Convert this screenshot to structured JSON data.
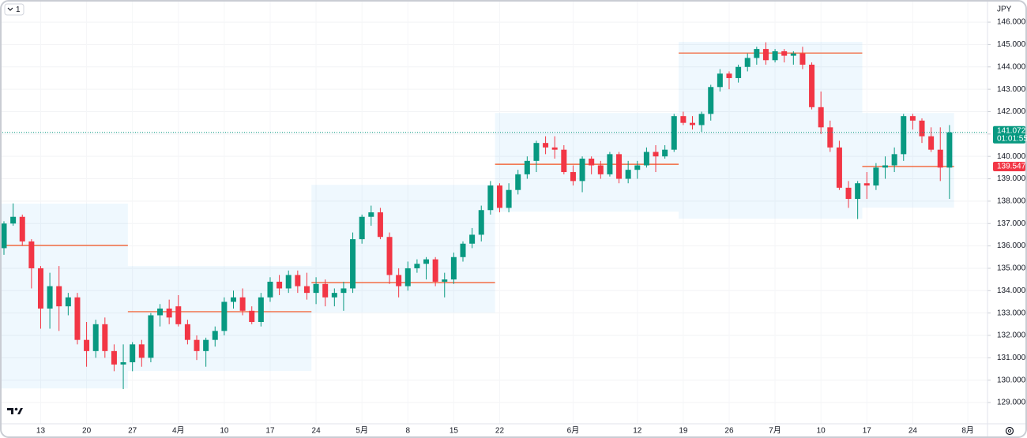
{
  "chart_data": {
    "type": "candlestick",
    "currency": "JPY",
    "interval": "1",
    "countdown": "01:01:55",
    "categories": [
      null,
      null,
      null,
      null,
      "13",
      null,
      null,
      null,
      null,
      "20",
      null,
      null,
      null,
      null,
      "27",
      null,
      null,
      null,
      null,
      "4月",
      null,
      null,
      null,
      null,
      "10",
      null,
      null,
      null,
      null,
      "17",
      null,
      null,
      null,
      null,
      "24",
      null,
      null,
      null,
      null,
      "5月",
      null,
      null,
      null,
      null,
      "8",
      null,
      null,
      null,
      null,
      "15",
      null,
      null,
      null,
      null,
      "22",
      null,
      null,
      null,
      null,
      null,
      null,
      null,
      "6月",
      null,
      null,
      null,
      null,
      null,
      null,
      "12",
      null,
      null,
      null,
      null,
      "19",
      null,
      null,
      null,
      null,
      "26",
      null,
      null,
      null,
      null,
      "7月",
      null,
      null,
      null,
      null,
      "10",
      null,
      null,
      null,
      null,
      "17",
      null,
      null,
      null,
      null,
      "24",
      null,
      null,
      null,
      null,
      null,
      "8月"
    ],
    "open": [
      135.9,
      137.0,
      137.3,
      136.2,
      135.0,
      133.2,
      134.2,
      133.3,
      133.7,
      131.8,
      131.3,
      132.5,
      131.3,
      130.7,
      130.8,
      131.6,
      131.0,
      132.9,
      133.2,
      133.3,
      132.5,
      131.8,
      131.3,
      131.8,
      132.2,
      133.5,
      133.7,
      133.1,
      132.6,
      133.7,
      134.4,
      134.1,
      134.7,
      134.2,
      133.9,
      134.3,
      133.7,
      133.9,
      134.1,
      136.3,
      137.3,
      137.5,
      136.4,
      134.7,
      134.2,
      135.0,
      135.2,
      135.4,
      134.4,
      134.5,
      135.5,
      136.1,
      136.5,
      137.6,
      138.7,
      137.7,
      138.5,
      139.2,
      139.8,
      140.6,
      140.4,
      140.3,
      139.3,
      138.9,
      139.9,
      139.6,
      139.2,
      140.1,
      139.0,
      139.4,
      139.6,
      140.2,
      140.0,
      140.3,
      141.8,
      141.5,
      141.4,
      141.9,
      143.1,
      143.7,
      143.5,
      144.0,
      144.4,
      144.8,
      144.3,
      144.7,
      144.5,
      144.6,
      144.1,
      142.2,
      141.3,
      140.4,
      138.6,
      138.1,
      138.8,
      138.7,
      139.5,
      139.6,
      140.1,
      141.8,
      141.6,
      140.9,
      140.3,
      139.5,
      null,
      null
    ],
    "high": [
      137.1,
      137.9,
      137.4,
      136.3,
      135.1,
      134.8,
      135.1,
      133.9,
      133.9,
      132.6,
      132.7,
      132.8,
      131.6,
      131.6,
      131.7,
      131.8,
      133.0,
      133.4,
      133.6,
      133.8,
      132.7,
      132.0,
      131.9,
      132.4,
      133.7,
      134.0,
      134.1,
      133.3,
      133.9,
      134.6,
      134.7,
      134.9,
      134.9,
      134.8,
      134.6,
      134.5,
      134.1,
      134.4,
      136.6,
      137.4,
      137.8,
      137.7,
      136.6,
      135.0,
      135.3,
      135.4,
      135.5,
      135.5,
      134.8,
      135.7,
      136.2,
      136.8,
      137.8,
      138.9,
      138.8,
      138.8,
      139.4,
      140.0,
      140.7,
      140.9,
      140.9,
      140.5,
      139.6,
      140.0,
      140.0,
      139.8,
      140.2,
      140.2,
      139.8,
      139.8,
      140.4,
      140.5,
      140.5,
      141.9,
      142.0,
      141.8,
      142.0,
      143.2,
      143.9,
      143.8,
      144.1,
      144.6,
      144.9,
      145.1,
      144.8,
      144.8,
      144.7,
      144.9,
      144.2,
      142.9,
      141.6,
      140.7,
      138.9,
      138.9,
      139.3,
      139.7,
      140.0,
      140.4,
      141.9,
      141.9,
      141.7,
      141.3,
      141.3,
      141.4,
      null,
      null
    ],
    "low": [
      135.6,
      136.9,
      136.0,
      134.1,
      132.3,
      132.3,
      132.2,
      132.9,
      131.6,
      130.6,
      131.0,
      131.0,
      130.4,
      129.6,
      130.4,
      130.6,
      130.8,
      132.4,
      132.5,
      132.4,
      131.6,
      130.9,
      130.6,
      131.5,
      132.0,
      133.2,
      132.9,
      132.5,
      132.4,
      133.5,
      133.8,
      133.9,
      133.9,
      133.6,
      133.4,
      133.3,
      133.3,
      133.1,
      133.9,
      136.1,
      136.9,
      136.3,
      134.3,
      133.7,
      134.0,
      134.8,
      134.5,
      134.2,
      133.7,
      134.3,
      135.3,
      135.9,
      136.2,
      137.4,
      137.5,
      137.5,
      138.3,
      139.0,
      139.3,
      140.1,
      139.9,
      139.2,
      138.7,
      138.4,
      139.2,
      139.0,
      139.1,
      138.8,
      138.8,
      139.0,
      139.5,
      139.3,
      139.9,
      140.2,
      141.4,
      141.2,
      141.1,
      141.6,
      142.9,
      143.0,
      143.3,
      143.8,
      144.1,
      144.1,
      144.2,
      144.2,
      144.1,
      143.9,
      142.1,
      141.0,
      140.2,
      138.5,
      137.7,
      137.2,
      138.1,
      138.5,
      139.0,
      139.3,
      139.8,
      141.2,
      140.6,
      140.2,
      138.9,
      138.1,
      null,
      null
    ],
    "close": [
      137.0,
      137.3,
      136.2,
      135.0,
      133.2,
      134.2,
      133.3,
      133.7,
      131.8,
      131.3,
      132.5,
      131.3,
      130.7,
      130.8,
      131.6,
      131.0,
      132.9,
      133.2,
      132.8,
      132.5,
      131.8,
      131.3,
      131.8,
      132.2,
      133.5,
      133.7,
      133.1,
      132.6,
      133.7,
      134.4,
      134.1,
      134.7,
      134.2,
      133.9,
      134.3,
      133.7,
      133.9,
      134.1,
      136.3,
      137.3,
      137.5,
      136.4,
      134.7,
      134.2,
      135.0,
      135.2,
      135.4,
      134.4,
      134.5,
      135.5,
      136.1,
      136.5,
      137.6,
      138.7,
      137.7,
      138.5,
      139.2,
      139.8,
      140.6,
      140.4,
      140.3,
      139.3,
      138.9,
      139.9,
      139.6,
      139.2,
      140.1,
      139.0,
      139.4,
      139.6,
      140.2,
      140.0,
      140.3,
      141.8,
      141.5,
      141.4,
      141.9,
      143.1,
      143.7,
      143.5,
      144.0,
      144.4,
      144.8,
      144.3,
      144.7,
      144.5,
      144.6,
      144.1,
      142.2,
      141.3,
      140.4,
      138.6,
      138.1,
      138.8,
      138.7,
      139.5,
      139.6,
      140.1,
      141.8,
      141.6,
      140.9,
      140.3,
      139.5,
      141.072,
      null,
      null
    ],
    "up_color": "#089981",
    "down_color": "#f23645",
    "profiles": [
      {
        "high": 137.89,
        "low": 129.63,
        "poc": 136.02
      },
      {
        "high": 135.1,
        "low": 130.41,
        "poc": 133.06
      },
      {
        "high": 138.73,
        "low": 133.02,
        "poc": 134.36
      },
      {
        "high": 141.94,
        "low": 137.53,
        "poc": 139.65
      },
      {
        "high": 145.12,
        "low": 137.22,
        "poc": 144.62
      },
      {
        "high": 141.94,
        "low": 137.71,
        "poc": 139.547
      }
    ],
    "ylim": [
      128.05,
      146.99
    ],
    "yticks": [
      {
        "value": 129,
        "label": "129.000"
      },
      {
        "value": 130,
        "label": "130.000"
      },
      {
        "value": 131,
        "label": "131.000"
      },
      {
        "value": 132,
        "label": "132.000"
      },
      {
        "value": 133,
        "label": "133.000"
      },
      {
        "value": 134,
        "label": "134.000"
      },
      {
        "value": 135,
        "label": "135.000"
      },
      {
        "value": 136,
        "label": "136.000"
      },
      {
        "value": 137,
        "label": "137.000"
      },
      {
        "value": 138,
        "label": "138.000"
      },
      {
        "value": 139,
        "label": "139.000"
      },
      {
        "value": 140,
        "label": "140.000"
      },
      {
        "value": 141,
        "label": "141.000"
      },
      {
        "value": 142,
        "label": "142.000"
      },
      {
        "value": 143,
        "label": "143.000"
      },
      {
        "value": 144,
        "label": "144.000"
      },
      {
        "value": 145,
        "label": "145.000"
      },
      {
        "value": 146,
        "label": "146.000"
      }
    ],
    "grid": true
  }
}
